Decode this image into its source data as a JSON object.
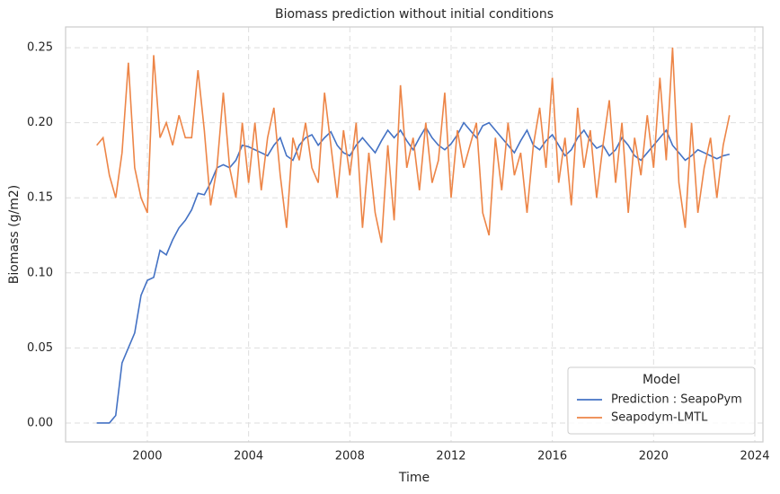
{
  "chart_data": {
    "type": "line",
    "title": "Biomass prediction without initial conditions",
    "x_label": "Time",
    "y_label": "Biomass (g/m2)",
    "x": [
      1998,
      1998.25,
      1998.5,
      1998.75,
      1999,
      1999.25,
      1999.5,
      1999.75,
      2000,
      2000.25,
      2000.5,
      2000.75,
      2001,
      2001.25,
      2001.5,
      2001.75,
      2002,
      2002.25,
      2002.5,
      2002.75,
      2003,
      2003.25,
      2003.5,
      2003.75,
      2004,
      2004.25,
      2004.5,
      2004.75,
      2005,
      2005.25,
      2005.5,
      2005.75,
      2006,
      2006.25,
      2006.5,
      2006.75,
      2007,
      2007.25,
      2007.5,
      2007.75,
      2008,
      2008.25,
      2008.5,
      2008.75,
      2009,
      2009.25,
      2009.5,
      2009.75,
      2010,
      2010.25,
      2010.5,
      2010.75,
      2011,
      2011.25,
      2011.5,
      2011.75,
      2012,
      2012.25,
      2012.5,
      2012.75,
      2013,
      2013.25,
      2013.5,
      2013.75,
      2014,
      2014.25,
      2014.5,
      2014.75,
      2015,
      2015.25,
      2015.5,
      2015.75,
      2016,
      2016.25,
      2016.5,
      2016.75,
      2017,
      2017.25,
      2017.5,
      2017.75,
      2018,
      2018.25,
      2018.5,
      2018.75,
      2019,
      2019.25,
      2019.5,
      2019.75,
      2020,
      2020.25,
      2020.5,
      2020.75,
      2021,
      2021.25,
      2021.5,
      2021.75,
      2022,
      2022.25,
      2022.5,
      2022.75,
      2023
    ],
    "series": [
      {
        "name": "Prediction : SeapoPym",
        "color": "#4472c4",
        "values": [
          0,
          0,
          0,
          0.005,
          0.04,
          0.05,
          0.06,
          0.085,
          0.095,
          0.097,
          0.115,
          0.112,
          0.122,
          0.13,
          0.135,
          0.142,
          0.153,
          0.152,
          0.16,
          0.17,
          0.172,
          0.17,
          0.175,
          0.185,
          0.184,
          0.182,
          0.18,
          0.178,
          0.185,
          0.19,
          0.178,
          0.175,
          0.185,
          0.19,
          0.192,
          0.185,
          0.19,
          0.194,
          0.185,
          0.18,
          0.178,
          0.185,
          0.19,
          0.185,
          0.18,
          0.188,
          0.195,
          0.19,
          0.195,
          0.188,
          0.182,
          0.19,
          0.197,
          0.19,
          0.185,
          0.182,
          0.186,
          0.192,
          0.2,
          0.195,
          0.19,
          0.198,
          0.2,
          0.195,
          0.19,
          0.185,
          0.18,
          0.188,
          0.195,
          0.185,
          0.182,
          0.188,
          0.192,
          0.185,
          0.178,
          0.182,
          0.19,
          0.195,
          0.188,
          0.183,
          0.185,
          0.178,
          0.182,
          0.19,
          0.185,
          0.178,
          0.175,
          0.18,
          0.185,
          0.19,
          0.195,
          0.185,
          0.18,
          0.175,
          0.178,
          0.182,
          0.18,
          0.178,
          0.176,
          0.178,
          0.179
        ]
      },
      {
        "name": "Seapodym-LMTL",
        "color": "#ed8547",
        "values": [
          0.185,
          0.19,
          0.165,
          0.15,
          0.18,
          0.24,
          0.17,
          0.15,
          0.14,
          0.245,
          0.19,
          0.2,
          0.185,
          0.205,
          0.19,
          0.19,
          0.235,
          0.195,
          0.145,
          0.17,
          0.22,
          0.17,
          0.15,
          0.2,
          0.16,
          0.2,
          0.155,
          0.19,
          0.21,
          0.165,
          0.13,
          0.19,
          0.175,
          0.2,
          0.17,
          0.16,
          0.22,
          0.185,
          0.15,
          0.195,
          0.165,
          0.2,
          0.13,
          0.18,
          0.14,
          0.12,
          0.185,
          0.135,
          0.225,
          0.17,
          0.19,
          0.155,
          0.2,
          0.16,
          0.175,
          0.22,
          0.15,
          0.195,
          0.17,
          0.185,
          0.2,
          0.14,
          0.125,
          0.19,
          0.155,
          0.2,
          0.165,
          0.18,
          0.14,
          0.185,
          0.21,
          0.17,
          0.23,
          0.16,
          0.19,
          0.145,
          0.21,
          0.17,
          0.195,
          0.15,
          0.185,
          0.215,
          0.16,
          0.2,
          0.14,
          0.19,
          0.165,
          0.205,
          0.17,
          0.23,
          0.175,
          0.25,
          0.16,
          0.13,
          0.2,
          0.14,
          0.17,
          0.19,
          0.15,
          0.185,
          0.205
        ]
      }
    ],
    "xlim": [
      1996.77,
      2024.32
    ],
    "xticks": [
      2000,
      2004,
      2008,
      2012,
      2016,
      2020,
      2024
    ],
    "ylim": [
      -0.0126,
      0.2638
    ],
    "yticks": [
      {
        "value": 0,
        "label": "0.00"
      },
      {
        "value": 0.05,
        "label": "0.05"
      },
      {
        "value": 0.1,
        "label": "0.10"
      },
      {
        "value": 0.15,
        "label": "0.15"
      },
      {
        "value": 0.2,
        "label": "0.20"
      },
      {
        "value": 0.25,
        "label": "0.25"
      }
    ],
    "grid": true,
    "legend_title": "Model",
    "legend_loc": "lower right"
  }
}
